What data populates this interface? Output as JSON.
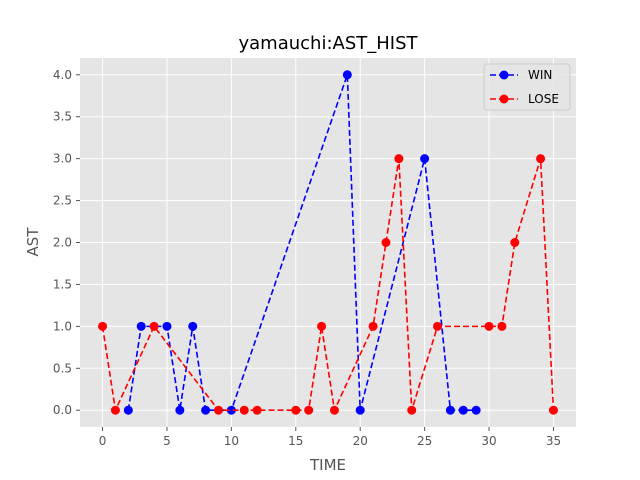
{
  "chart_data": {
    "type": "line",
    "title": "yamauchi:AST_HIST",
    "xlabel": "TIME",
    "ylabel": "AST",
    "xlim": [
      -1.75,
      36.75
    ],
    "ylim": [
      -0.2,
      4.2
    ],
    "xticks": [
      0,
      5,
      10,
      15,
      20,
      25,
      30,
      35
    ],
    "yticks": [
      0.0,
      0.5,
      1.0,
      1.5,
      2.0,
      2.5,
      3.0,
      3.5,
      4.0
    ],
    "xtick_labels": [
      "0",
      "5",
      "10",
      "15",
      "20",
      "25",
      "30",
      "35"
    ],
    "ytick_labels": [
      "0.0",
      "0.5",
      "1.0",
      "1.5",
      "2.0",
      "2.5",
      "3.0",
      "3.5",
      "4.0"
    ],
    "grid": true,
    "legend_position": "top-right",
    "series": [
      {
        "name": "WIN",
        "color": "#0000ff",
        "x": [
          2,
          3,
          5,
          6,
          7,
          8,
          10,
          19,
          20,
          25,
          27,
          28,
          29
        ],
        "y": [
          0,
          1,
          1,
          0,
          1,
          0,
          0,
          4,
          0,
          3,
          0,
          0,
          0
        ]
      },
      {
        "name": "LOSE",
        "color": "#ff0000",
        "x": [
          0,
          1,
          4,
          9,
          11,
          12,
          15,
          16,
          17,
          18,
          21,
          22,
          23,
          24,
          26,
          30,
          31,
          32,
          34,
          35
        ],
        "y": [
          1,
          0,
          1,
          0,
          0,
          0,
          0,
          0,
          1,
          0,
          1,
          2,
          3,
          0,
          1,
          1,
          1,
          2,
          3,
          0
        ]
      }
    ]
  }
}
